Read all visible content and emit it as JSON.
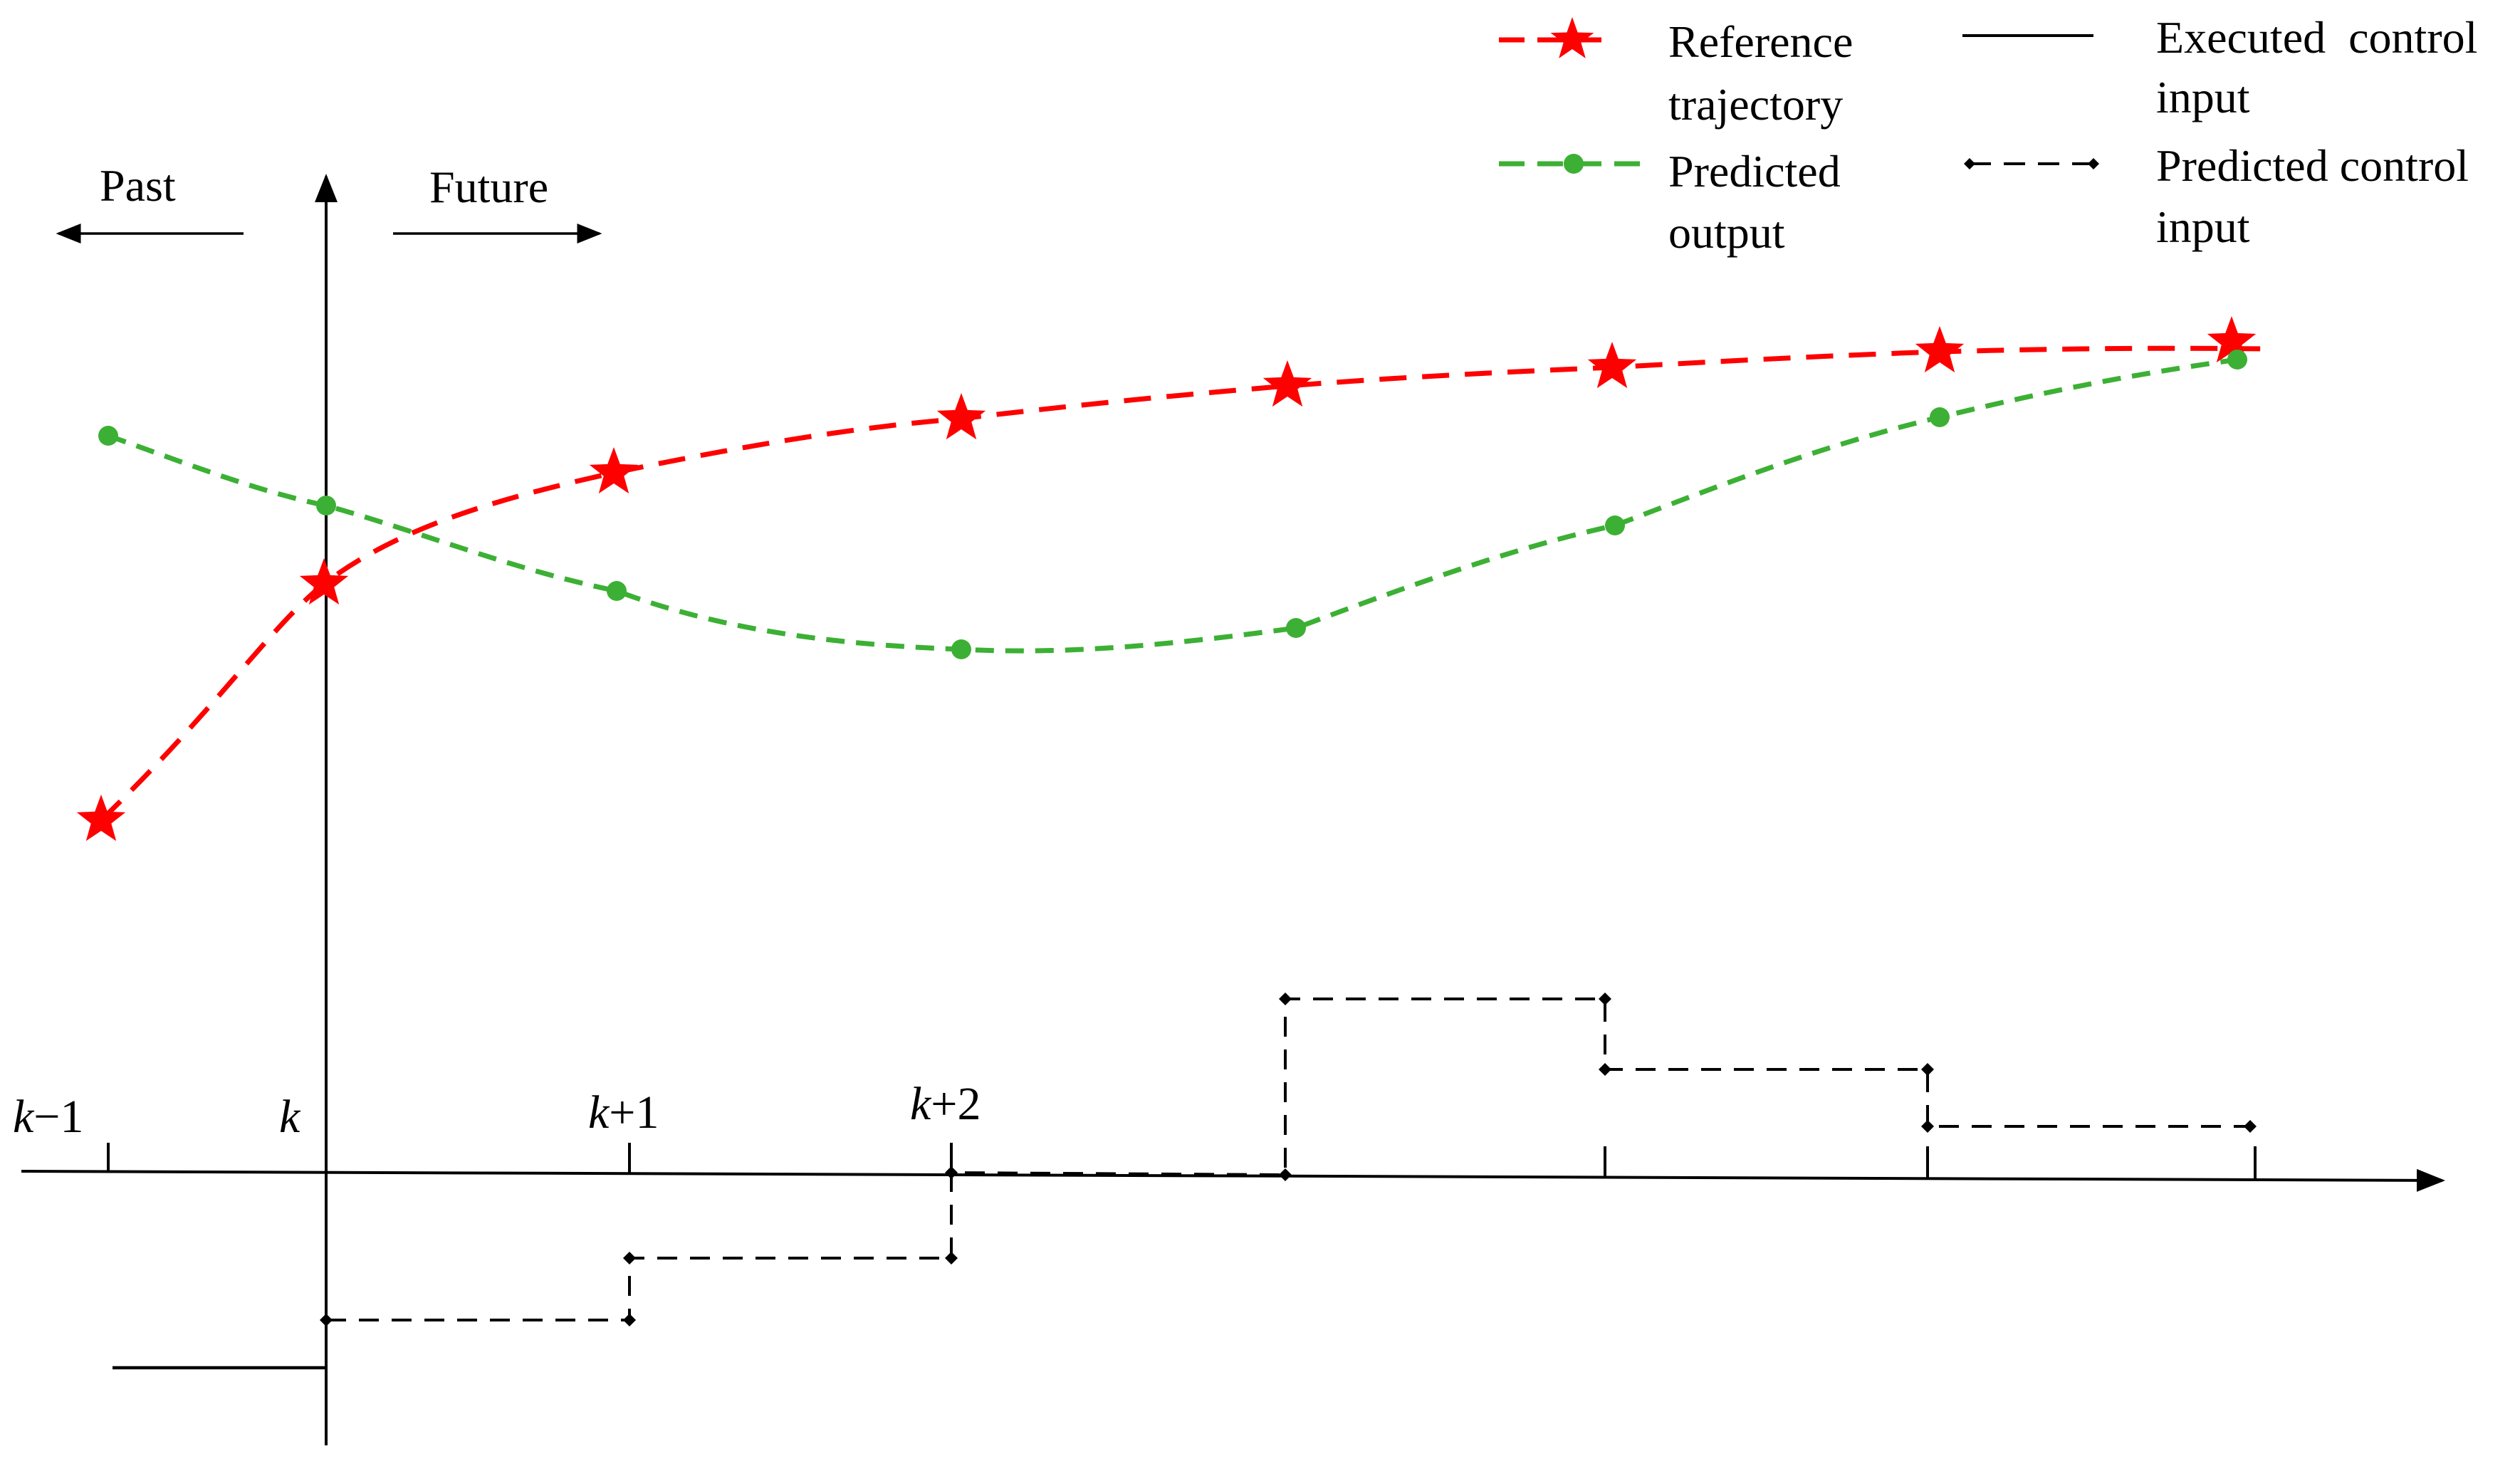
{
  "colors": {
    "reference": "#ff0000",
    "predicted_output": "#3cb034",
    "axis": "#000000",
    "background": "#ffffff"
  },
  "labels": {
    "past": "Past",
    "future": "Future"
  },
  "ticks": [
    {
      "var": "k",
      "suffix": "−1"
    },
    {
      "var": "k",
      "suffix": ""
    },
    {
      "var": "k",
      "suffix": "+1"
    },
    {
      "var": "k",
      "suffix": "+2"
    }
  ],
  "legend": {
    "reference": [
      "Reference",
      "trajectory"
    ],
    "predicted_output": [
      "Predicted",
      "output"
    ],
    "executed": [
      "Executed  control",
      "input"
    ],
    "predicted_control": [
      "Predicted control",
      "input"
    ]
  },
  "icons": {
    "reference_marker": "star",
    "predicted_marker": "circle",
    "control_marker": "diamond"
  }
}
